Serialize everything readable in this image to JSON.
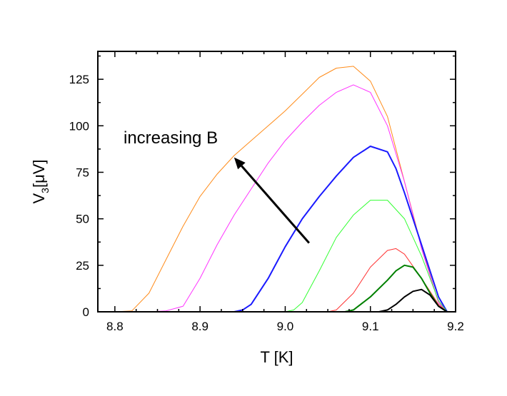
{
  "chart_data": {
    "type": "line",
    "xlabel": "T [K]",
    "ylabel_main": "V",
    "ylabel_sub": "3",
    "ylabel_unit": "[μV]",
    "xlim": [
      8.78,
      9.2
    ],
    "ylim": [
      0,
      140
    ],
    "xticks": [
      8.8,
      8.9,
      9.0,
      9.1,
      9.2
    ],
    "xtick_labels": [
      "8.8",
      "8.9",
      "9.0",
      "9.1",
      "9.2"
    ],
    "yticks": [
      0,
      25,
      50,
      75,
      100,
      125
    ],
    "ytick_labels": [
      "0",
      "25",
      "50",
      "75",
      "100",
      "125"
    ],
    "grid": false,
    "annotation": {
      "text": "increasing B",
      "arrow_from": [
        9.028,
        37
      ],
      "arrow_to": [
        8.94,
        83
      ]
    },
    "series": [
      {
        "color": "#ff8c1a",
        "width": 1,
        "x": [
          8.78,
          8.8,
          8.82,
          8.84,
          8.86,
          8.88,
          8.9,
          8.92,
          8.94,
          8.96,
          8.98,
          9.0,
          9.02,
          9.04,
          9.06,
          9.08,
          9.1,
          9.12,
          9.14,
          9.16,
          9.18,
          9.19
        ],
        "y": [
          0,
          0,
          0.5,
          10,
          28,
          46,
          62,
          74,
          84,
          92,
          100,
          108,
          117,
          126,
          131,
          132,
          124,
          105,
          70,
          35,
          5,
          0
        ]
      },
      {
        "color": "#ff33ff",
        "width": 1,
        "x": [
          8.78,
          8.84,
          8.86,
          8.88,
          8.9,
          8.92,
          8.94,
          8.96,
          8.98,
          9.0,
          9.02,
          9.04,
          9.06,
          9.08,
          9.1,
          9.12,
          9.14,
          9.16,
          9.18,
          9.19
        ],
        "y": [
          0,
          0,
          0.5,
          3,
          18,
          36,
          52,
          66,
          80,
          92,
          102,
          111,
          118,
          122,
          118,
          100,
          70,
          34,
          5,
          0
        ]
      },
      {
        "color": "#1a1aff",
        "width": 2,
        "x": [
          8.78,
          8.94,
          8.95,
          8.96,
          8.98,
          9.0,
          9.02,
          9.04,
          9.06,
          9.08,
          9.1,
          9.12,
          9.13,
          9.14,
          9.16,
          9.18,
          9.19
        ],
        "y": [
          0,
          0,
          1,
          4,
          18,
          35,
          50,
          62,
          73,
          83,
          89,
          86,
          77,
          64,
          36,
          8,
          0
        ]
      },
      {
        "color": "#33ff33",
        "width": 1,
        "x": [
          8.78,
          9.0,
          9.01,
          9.02,
          9.04,
          9.06,
          9.08,
          9.1,
          9.12,
          9.14,
          9.16,
          9.18,
          9.19
        ],
        "y": [
          0,
          0,
          1,
          5,
          22,
          40,
          52,
          60,
          60,
          50,
          30,
          6,
          0
        ]
      },
      {
        "color": "#ff3333",
        "width": 1,
        "x": [
          8.78,
          9.05,
          9.06,
          9.08,
          9.1,
          9.12,
          9.13,
          9.14,
          9.16,
          9.18,
          9.19
        ],
        "y": [
          0,
          0,
          1,
          10,
          24,
          33,
          34,
          31,
          18,
          4,
          0
        ]
      },
      {
        "color": "#008000",
        "width": 2,
        "x": [
          8.78,
          9.07,
          9.08,
          9.1,
          9.12,
          9.13,
          9.14,
          9.15,
          9.16,
          9.17,
          9.18,
          9.19
        ],
        "y": [
          0,
          0,
          1,
          8,
          17,
          22,
          25,
          24,
          18,
          10,
          3,
          0
        ]
      },
      {
        "color": "#000000",
        "width": 2,
        "x": [
          8.78,
          9.11,
          9.12,
          9.13,
          9.14,
          9.15,
          9.16,
          9.17,
          9.18,
          9.19
        ],
        "y": [
          0,
          0,
          1,
          4,
          8,
          11,
          12,
          9,
          3,
          0
        ]
      }
    ]
  }
}
